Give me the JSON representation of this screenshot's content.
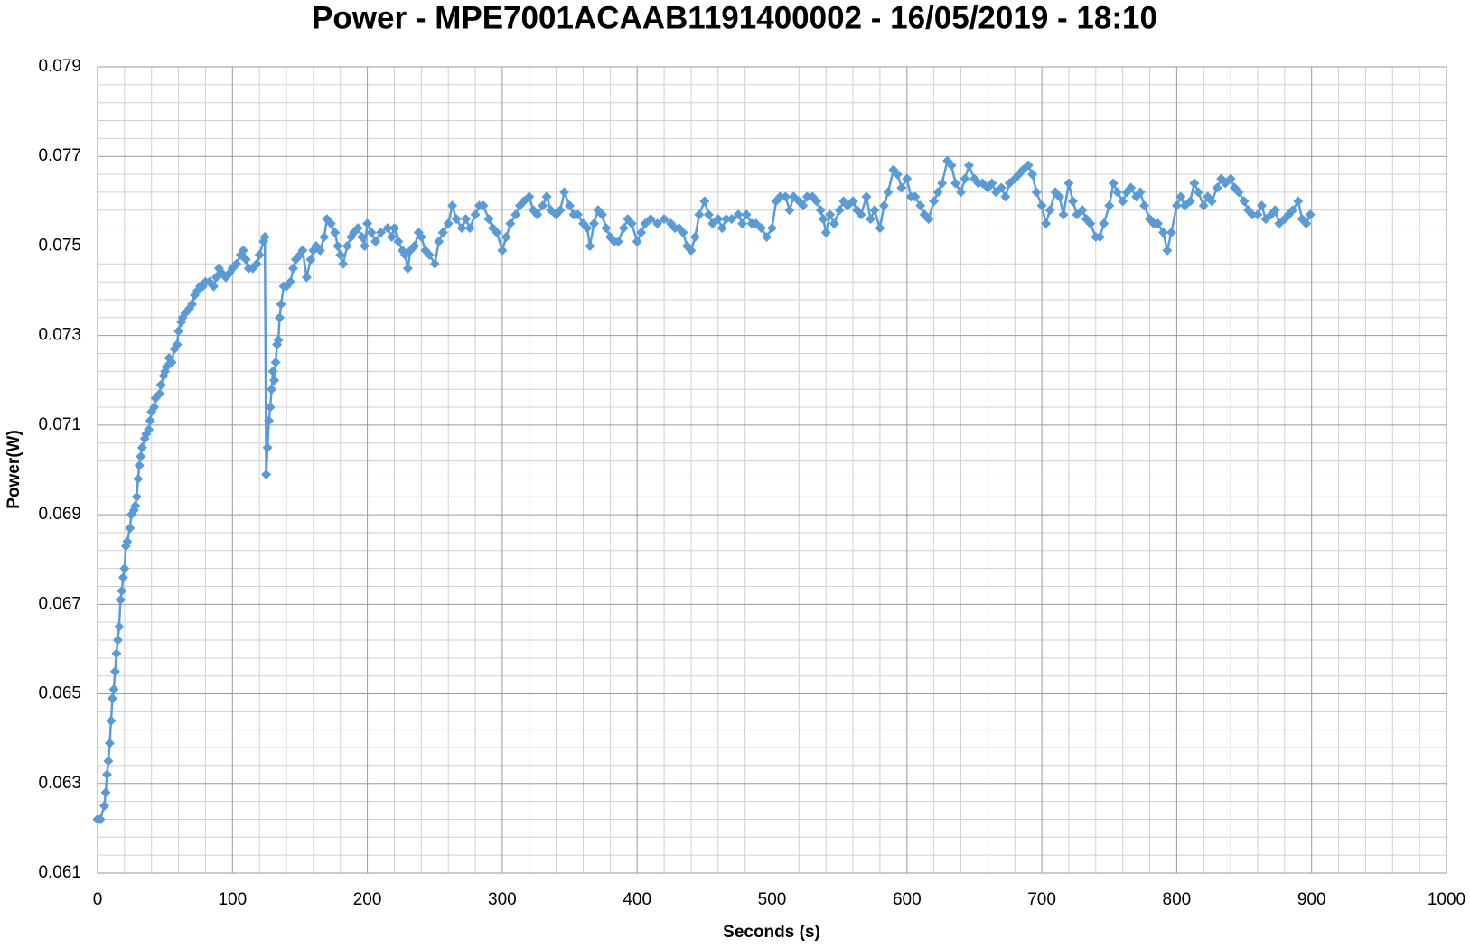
{
  "chart_data": {
    "type": "line",
    "title": "Power - MPE7001ACAAB1191400002 - 16/05/2019 - 18:10",
    "xlabel": "Seconds (s)",
    "ylabel": "Power(W)",
    "xlim": [
      0,
      1000
    ],
    "xticks": [
      0,
      100,
      200,
      300,
      400,
      500,
      600,
      700,
      800,
      900,
      1000
    ],
    "ylim": [
      0.061,
      0.079
    ],
    "yticks": [
      0.061,
      0.063,
      0.065,
      0.067,
      0.069,
      0.071,
      0.073,
      0.075,
      0.077,
      0.079
    ],
    "grid": true,
    "color": "#5b9bd5",
    "marker": "diamond",
    "x": [
      0,
      2,
      5,
      6,
      7,
      8,
      9,
      10,
      11,
      12,
      13,
      14,
      15,
      16,
      17,
      18,
      19,
      20,
      21,
      22,
      24,
      25,
      27,
      28,
      29,
      30,
      31,
      32,
      33,
      35,
      36,
      38,
      39,
      40,
      42,
      43,
      46,
      47,
      49,
      50,
      51,
      53,
      55,
      57,
      59,
      60,
      62,
      63,
      65,
      68,
      70,
      72,
      74,
      76,
      78,
      80,
      83,
      86,
      88,
      90,
      92,
      95,
      98,
      100,
      103,
      106,
      108,
      110,
      112,
      115,
      118,
      120,
      123,
      124,
      125,
      126,
      127,
      128,
      129,
      130,
      131,
      132,
      133,
      134,
      135,
      136,
      138,
      140,
      143,
      145,
      147,
      150,
      152,
      155,
      158,
      160,
      162,
      165,
      168,
      170,
      173,
      176,
      178,
      180,
      182,
      185,
      188,
      190,
      193,
      196,
      198,
      200,
      203,
      206,
      210,
      215,
      218,
      220,
      223,
      226,
      228,
      230,
      232,
      235,
      238,
      240,
      243,
      246,
      250,
      253,
      256,
      260,
      263,
      266,
      270,
      273,
      276,
      280,
      283,
      286,
      290,
      293,
      296,
      300,
      303,
      306,
      310,
      313,
      316,
      320,
      323,
      326,
      330,
      333,
      336,
      340,
      343,
      346,
      350,
      353,
      356,
      360,
      363,
      365,
      368,
      371,
      374,
      377,
      380,
      383,
      386,
      390,
      393,
      396,
      400,
      403,
      406,
      410,
      415,
      420,
      425,
      428,
      431,
      434,
      437,
      440,
      443,
      446,
      450,
      453,
      456,
      460,
      463,
      466,
      470,
      475,
      478,
      481,
      485,
      488,
      492,
      496,
      500,
      503,
      506,
      510,
      513,
      516,
      520,
      523,
      526,
      530,
      533,
      536,
      538,
      540,
      543,
      546,
      550,
      553,
      556,
      560,
      563,
      566,
      570,
      573,
      576,
      580,
      583,
      586,
      590,
      593,
      596,
      600,
      603,
      606,
      610,
      613,
      616,
      620,
      623,
      626,
      630,
      633,
      636,
      640,
      643,
      646,
      650,
      653,
      656,
      660,
      663,
      666,
      670,
      673,
      676,
      680,
      683,
      686,
      690,
      693,
      696,
      700,
      703,
      706,
      710,
      713,
      716,
      720,
      723,
      726,
      730,
      733,
      736,
      740,
      743,
      746,
      750,
      753,
      756,
      760,
      763,
      766,
      770,
      773,
      776,
      780,
      783,
      786,
      790,
      793,
      796,
      800,
      803,
      806,
      810,
      813,
      816,
      820,
      823,
      826,
      830,
      833,
      836,
      840,
      843,
      846,
      850,
      853,
      856,
      860,
      863,
      866,
      870,
      873,
      876,
      880,
      883,
      886,
      890,
      893,
      896,
      899
    ],
    "values": [
      0.0622,
      0.0622,
      0.0625,
      0.0628,
      0.0632,
      0.0635,
      0.0639,
      0.0644,
      0.0649,
      0.0651,
      0.0655,
      0.0659,
      0.0662,
      0.0665,
      0.0671,
      0.0673,
      0.0676,
      0.0678,
      0.0683,
      0.0684,
      0.0687,
      0.069,
      0.0691,
      0.0692,
      0.0694,
      0.0698,
      0.0701,
      0.0703,
      0.0705,
      0.0707,
      0.0708,
      0.0709,
      0.0711,
      0.0713,
      0.0714,
      0.0716,
      0.0717,
      0.0719,
      0.0721,
      0.0722,
      0.0723,
      0.0725,
      0.0724,
      0.0727,
      0.0728,
      0.0731,
      0.0733,
      0.0734,
      0.0735,
      0.0736,
      0.0737,
      0.0739,
      0.074,
      0.0741,
      0.0741,
      0.0742,
      0.0742,
      0.0741,
      0.0743,
      0.0745,
      0.0744,
      0.0743,
      0.0744,
      0.0745,
      0.0746,
      0.0748,
      0.0749,
      0.0747,
      0.0745,
      0.0745,
      0.0746,
      0.0748,
      0.0751,
      0.0752,
      0.0699,
      0.0705,
      0.0711,
      0.0714,
      0.0718,
      0.0722,
      0.072,
      0.0724,
      0.0728,
      0.0729,
      0.0734,
      0.0737,
      0.0741,
      0.0741,
      0.0742,
      0.0745,
      0.0747,
      0.0748,
      0.0749,
      0.0743,
      0.0747,
      0.0749,
      0.075,
      0.0749,
      0.0752,
      0.0756,
      0.0755,
      0.0753,
      0.075,
      0.0748,
      0.0746,
      0.075,
      0.0752,
      0.0753,
      0.0754,
      0.0752,
      0.075,
      0.0755,
      0.0753,
      0.0751,
      0.0753,
      0.0754,
      0.0752,
      0.0754,
      0.0751,
      0.0749,
      0.0748,
      0.0745,
      0.0749,
      0.075,
      0.0753,
      0.0752,
      0.0749,
      0.0748,
      0.0746,
      0.0751,
      0.0753,
      0.0755,
      0.0759,
      0.0756,
      0.0754,
      0.0756,
      0.0754,
      0.0757,
      0.0759,
      0.0759,
      0.0756,
      0.0754,
      0.0753,
      0.0749,
      0.0752,
      0.0755,
      0.0757,
      0.0759,
      0.076,
      0.0761,
      0.0758,
      0.0757,
      0.0759,
      0.0761,
      0.0758,
      0.0757,
      0.0758,
      0.0762,
      0.0759,
      0.0757,
      0.0757,
      0.0755,
      0.0754,
      0.075,
      0.0755,
      0.0758,
      0.0757,
      0.0754,
      0.0752,
      0.0751,
      0.0751,
      0.0754,
      0.0756,
      0.0755,
      0.0751,
      0.0753,
      0.0755,
      0.0756,
      0.0755,
      0.0756,
      0.0755,
      0.0754,
      0.0754,
      0.0753,
      0.075,
      0.0749,
      0.0752,
      0.0757,
      0.076,
      0.0757,
      0.0755,
      0.0756,
      0.0754,
      0.0756,
      0.0756,
      0.0757,
      0.0755,
      0.0757,
      0.0755,
      0.0755,
      0.0754,
      0.0752,
      0.0754,
      0.076,
      0.0761,
      0.0761,
      0.0758,
      0.0761,
      0.076,
      0.0759,
      0.0761,
      0.0761,
      0.076,
      0.0758,
      0.0756,
      0.0753,
      0.0757,
      0.0755,
      0.0758,
      0.076,
      0.0759,
      0.076,
      0.0758,
      0.0757,
      0.0761,
      0.0756,
      0.0758,
      0.0754,
      0.0759,
      0.0762,
      0.0767,
      0.0766,
      0.0763,
      0.0765,
      0.0761,
      0.0761,
      0.0759,
      0.0757,
      0.0756,
      0.076,
      0.0762,
      0.0764,
      0.0769,
      0.0768,
      0.0764,
      0.0762,
      0.0765,
      0.0768,
      0.0765,
      0.0764,
      0.0764,
      0.0763,
      0.0764,
      0.0762,
      0.0763,
      0.0761,
      0.0764,
      0.0765,
      0.0766,
      0.0767,
      0.0768,
      0.0766,
      0.0762,
      0.0759,
      0.0755,
      0.0758,
      0.0762,
      0.0761,
      0.0757,
      0.0764,
      0.076,
      0.0757,
      0.0758,
      0.0756,
      0.0755,
      0.0752,
      0.0752,
      0.0755,
      0.0759,
      0.0764,
      0.0762,
      0.076,
      0.0762,
      0.0763,
      0.0761,
      0.0762,
      0.0759,
      0.0756,
      0.0755,
      0.0755,
      0.0753,
      0.0749,
      0.0753,
      0.0759,
      0.0761,
      0.0759,
      0.076,
      0.0764,
      0.0762,
      0.0759,
      0.0761,
      0.076,
      0.0763,
      0.0765,
      0.0764,
      0.0765,
      0.0763,
      0.0762,
      0.076,
      0.0758,
      0.0757,
      0.0757,
      0.0759,
      0.0756,
      0.0757,
      0.0758,
      0.0755,
      0.0756,
      0.0757,
      0.0758,
      0.076,
      0.0756,
      0.0755,
      0.0757
    ]
  }
}
